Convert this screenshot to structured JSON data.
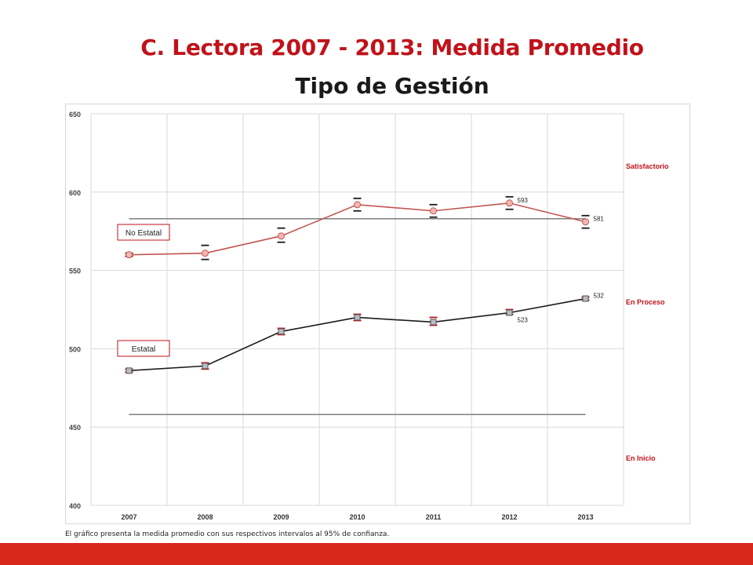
{
  "title": "C. Lectora 2007 - 2013: Medida Promedio",
  "subtitle": "Tipo de Gestión",
  "footnote": "El gráfico presenta la medida promedio con sus respectivos intervalos al 95% de confianza.",
  "colors": {
    "accent": "#c0121a",
    "bottom_bar": "#d8261c",
    "no_estatal": "#c2554f",
    "estatal": "#1a1a1a"
  },
  "chart_data": {
    "type": "line",
    "categories": [
      "2007",
      "2008",
      "2009",
      "2010",
      "2011",
      "2012",
      "2013"
    ],
    "ylim": [
      400,
      650
    ],
    "yticks": [
      "400",
      "450",
      "500",
      "550",
      "600",
      "650"
    ],
    "grid": true,
    "series": [
      {
        "name": "No Estatal",
        "values": [
          560,
          561,
          572,
          592,
          588,
          593,
          581
        ],
        "ci_low": [
          559,
          557,
          568,
          588,
          584,
          589,
          577
        ],
        "ci_high": [
          561,
          566,
          577,
          596,
          592,
          597,
          585
        ],
        "data_labels": [
          "",
          "",
          "",
          "",
          "",
          "593",
          "581"
        ]
      },
      {
        "name": "Estatal",
        "values": [
          486,
          489,
          511,
          520,
          517,
          523,
          532
        ],
        "ci_low": [
          485,
          487,
          509,
          518,
          515,
          522,
          531
        ],
        "ci_high": [
          487,
          491,
          513,
          522,
          520,
          525,
          533
        ],
        "data_labels": [
          "",
          "",
          "",
          "",
          "",
          "523",
          "532"
        ]
      }
    ],
    "reference_lines": [
      583,
      458
    ],
    "performance_levels": [
      "Satisfactorio",
      "En Proceso",
      "En Inicio"
    ]
  }
}
